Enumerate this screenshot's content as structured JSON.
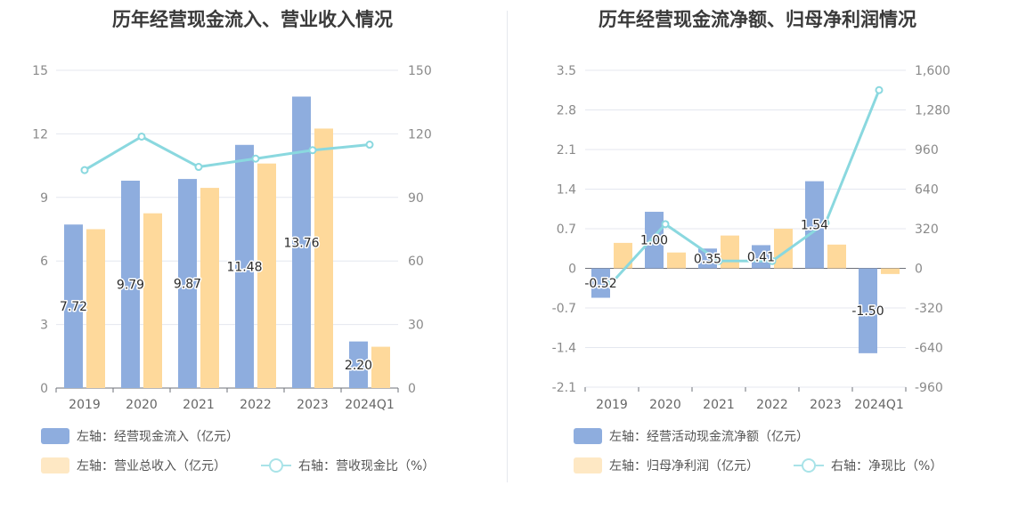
{
  "colors": {
    "bar_primary": "#8eadde",
    "bar_secondary": "#fed99b",
    "line": "#8ad8df",
    "grid": "#e4e7ef",
    "axis": "#8a8a8a"
  },
  "chart_data": [
    {
      "type": "bar",
      "title": "历年经营现金流入、营业收入情况",
      "categories": [
        "2019",
        "2020",
        "2021",
        "2022",
        "2023",
        "2024Q1"
      ],
      "y_left": {
        "ticks": [
          "0",
          "3",
          "6",
          "9",
          "12",
          "15"
        ],
        "ylim": [
          0,
          15
        ]
      },
      "y_right": {
        "ticks": [
          "0",
          "30",
          "60",
          "90",
          "120",
          "150"
        ],
        "ylim": [
          0,
          150
        ]
      },
      "series": [
        {
          "name": "左轴：经营现金流入（亿元）",
          "axis": "left",
          "kind": "bar",
          "values": [
            7.72,
            9.79,
            9.87,
            11.48,
            13.76,
            2.2
          ],
          "labels": [
            "7.72",
            "9.79",
            "9.87",
            "11.48",
            "13.76",
            "2.20"
          ]
        },
        {
          "name": "左轴：营业总收入（亿元）",
          "axis": "left",
          "kind": "bar",
          "values": [
            7.5,
            8.25,
            9.45,
            10.6,
            12.25,
            1.95
          ]
        },
        {
          "name": "右轴：营收现金比（%）",
          "axis": "right",
          "kind": "line",
          "values": [
            102.9,
            118.7,
            104.4,
            108.3,
            112.3,
            114.9
          ]
        }
      ],
      "grid": true,
      "legend_position": "bottom-left"
    },
    {
      "type": "bar",
      "title": "历年经营现金流净额、归母净利润情况",
      "categories": [
        "2019",
        "2020",
        "2021",
        "2022",
        "2023",
        "2024Q1"
      ],
      "y_left": {
        "ticks": [
          "-2.1",
          "-1.4",
          "-0.7",
          "0",
          "0.7",
          "1.4",
          "2.1",
          "2.8",
          "3.5"
        ],
        "ylim": [
          -2.1,
          3.5
        ]
      },
      "y_right": {
        "ticks": [
          "-960",
          "-640",
          "-320",
          "0",
          "320",
          "640",
          "960",
          "1,280",
          "1,600"
        ],
        "ylim": [
          -960,
          1600
        ]
      },
      "series": [
        {
          "name": "左轴：经营活动现金流净额（亿元）",
          "axis": "left",
          "kind": "bar",
          "values": [
            -0.52,
            1.0,
            0.35,
            0.41,
            1.54,
            -1.5
          ],
          "labels": [
            "-0.52",
            "1.00",
            "0.35",
            "0.41",
            "1.54",
            "-1.50"
          ]
        },
        {
          "name": "左轴：归母净利润（亿元）",
          "axis": "left",
          "kind": "bar",
          "values": [
            0.45,
            0.28,
            0.58,
            0.7,
            0.42,
            -0.1
          ]
        },
        {
          "name": "右轴：净现比（%）",
          "axis": "right",
          "kind": "line",
          "values": [
            -116,
            357,
            60,
            59,
            367,
            1440
          ]
        }
      ],
      "grid": true,
      "legend_position": "bottom-left"
    }
  ]
}
